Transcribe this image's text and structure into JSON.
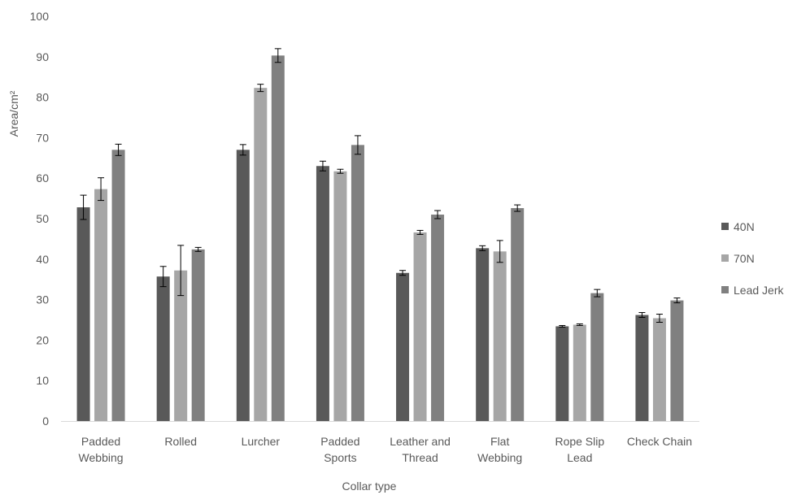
{
  "chart_data": {
    "type": "bar",
    "title": "",
    "xlabel": "Collar type",
    "ylabel": "Area/cm²",
    "ylim": [
      0,
      100
    ],
    "yticks": [
      0,
      10,
      20,
      30,
      40,
      50,
      60,
      70,
      80,
      90,
      100
    ],
    "grid": false,
    "legend_position": "right",
    "categories": [
      [
        "Padded",
        "Webbing"
      ],
      [
        "Rolled"
      ],
      [
        "Lurcher"
      ],
      [
        "Padded",
        "Sports"
      ],
      [
        "Leather and",
        "Thread"
      ],
      [
        "Flat",
        "Webbing"
      ],
      [
        "Rope Slip",
        "Lead"
      ],
      [
        "Check Chain"
      ]
    ],
    "series": [
      {
        "name": "40N",
        "color": "#595959",
        "values": [
          52.8,
          35.7,
          67.0,
          63.0,
          36.6,
          42.7,
          23.4,
          26.2
        ],
        "errors": [
          3.0,
          2.5,
          1.3,
          1.2,
          0.6,
          0.6,
          0.2,
          0.6
        ]
      },
      {
        "name": "70N",
        "color": "#a6a6a6",
        "values": [
          57.3,
          37.2,
          82.3,
          61.7,
          46.6,
          41.9,
          23.8,
          25.4
        ],
        "errors": [
          2.8,
          6.2,
          0.9,
          0.5,
          0.5,
          2.7,
          0.2,
          1.0
        ]
      },
      {
        "name": "Lead Jerk",
        "color": "#808080",
        "values": [
          67.0,
          42.4,
          90.3,
          68.2,
          51.0,
          52.6,
          31.6,
          29.8
        ],
        "errors": [
          1.4,
          0.5,
          1.7,
          2.3,
          1.0,
          0.8,
          0.9,
          0.6
        ]
      }
    ]
  }
}
